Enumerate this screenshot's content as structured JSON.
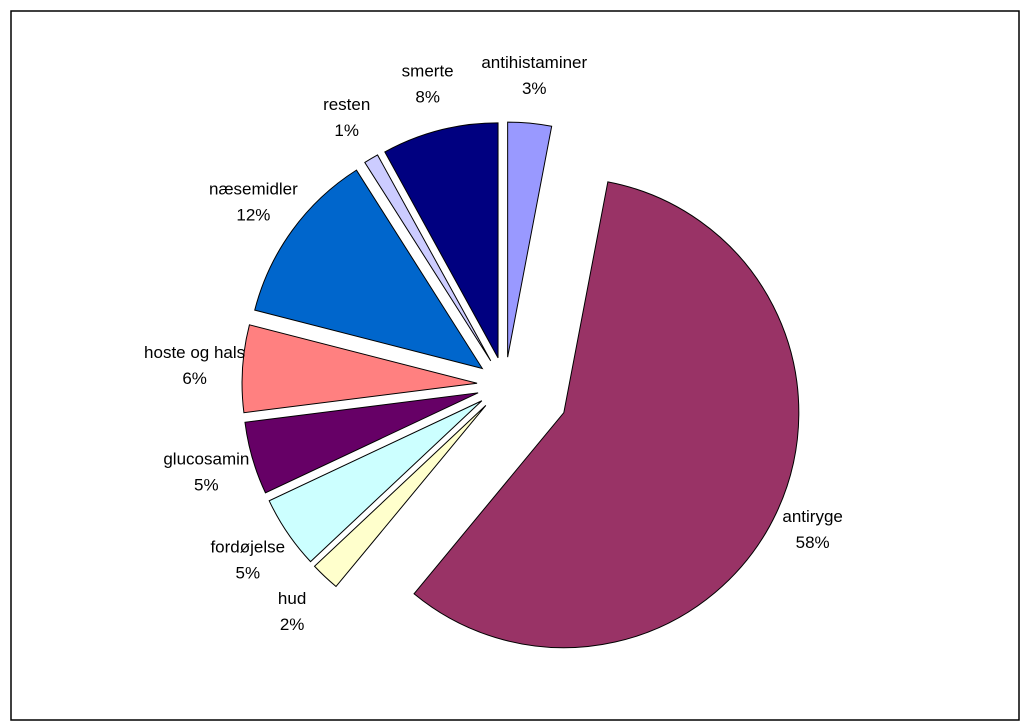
{
  "chart_data": {
    "type": "pie",
    "categories": [
      "antihistaminer",
      "antiryge",
      "hud",
      "fordøjelse",
      "glucosamin",
      "hoste og hals",
      "næsemidler",
      "resten",
      "smerte"
    ],
    "values": [
      3,
      58,
      2,
      5,
      5,
      6,
      12,
      1,
      8
    ],
    "value_labels": [
      "3%",
      "58%",
      "2%",
      "5%",
      "5%",
      "6%",
      "12%",
      "1%",
      "8%"
    ],
    "colors": [
      "#9999ff",
      "#993366",
      "#ffffcc",
      "#ccffff",
      "#660066",
      "#ff8080",
      "#0066cc",
      "#ccccff",
      "#000080"
    ]
  }
}
